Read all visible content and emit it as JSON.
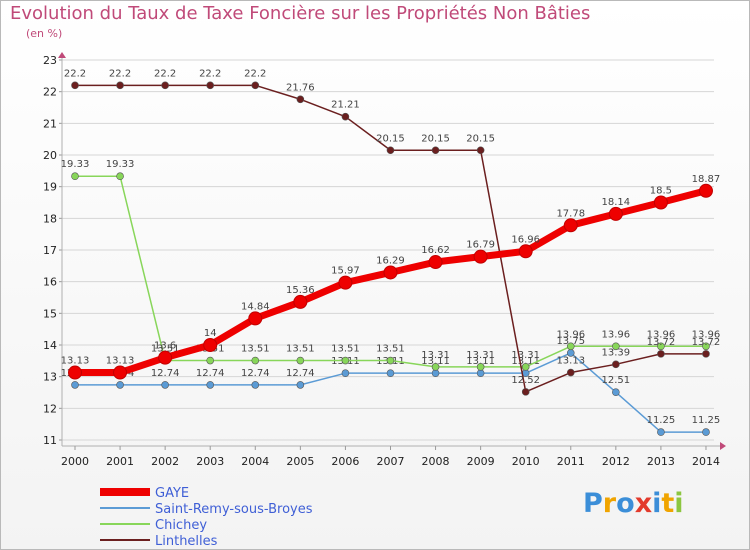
{
  "chart_data": {
    "type": "line",
    "title": "Evolution du Taux de Taxe Foncière sur les Propriétés Non Bâties",
    "ylabel": "(en %)",
    "xlabel": "",
    "x": [
      "2000",
      "2001",
      "2002",
      "2003",
      "2004",
      "2005",
      "2006",
      "2007",
      "2008",
      "2009",
      "2010",
      "2011",
      "2012",
      "2013",
      "2014"
    ],
    "ylim": [
      11,
      23
    ],
    "yticks": [
      "11",
      "12",
      "13",
      "14",
      "15",
      "16",
      "17",
      "18",
      "19",
      "20",
      "21",
      "22",
      "23"
    ],
    "series": [
      {
        "name": "GAYE",
        "color": "#ee0000",
        "values": [
          13.13,
          13.13,
          13.6,
          14,
          14.84,
          15.36,
          15.97,
          16.29,
          16.62,
          16.79,
          16.96,
          17.78,
          18.14,
          18.5,
          18.87
        ],
        "labels": [
          "13.13",
          "13.13",
          "13.6",
          "14",
          "14.84",
          "15.36",
          "15.97",
          "16.29",
          "16.62",
          "16.79",
          "16.96",
          "17.78",
          "18.14",
          "18.5",
          "18.87"
        ]
      },
      {
        "name": "Saint-Remy-sous-Broyes",
        "color": "#5b9bd5",
        "values": [
          12.74,
          12.74,
          12.74,
          12.74,
          12.74,
          12.74,
          13.11,
          13.11,
          13.11,
          13.11,
          13.11,
          13.75,
          12.51,
          11.25,
          11.25
        ],
        "labels": [
          "12.74",
          "12.74",
          "12.74",
          "12.74",
          "12.74",
          "12.74",
          "13.11",
          "13.11",
          "13.11",
          "13.11",
          "13.11",
          "13.75",
          "12.51",
          "11.25",
          "11.25"
        ]
      },
      {
        "name": "Chichey",
        "color": "#88d65a",
        "values": [
          19.33,
          19.33,
          13.51,
          13.51,
          13.51,
          13.51,
          13.51,
          13.51,
          13.31,
          13.31,
          13.31,
          13.96,
          13.96,
          13.96,
          13.96
        ],
        "labels": [
          "19.33",
          "19.33",
          "13.51",
          "13.51",
          "13.51",
          "13.51",
          "13.51",
          "13.51",
          "13.31",
          "13.31",
          "13.31",
          "13.96",
          "13.96",
          "13.96",
          "13.96"
        ]
      },
      {
        "name": "Linthelles",
        "color": "#6b1f1f",
        "values": [
          22.2,
          22.2,
          22.2,
          22.2,
          22.2,
          21.76,
          21.21,
          20.15,
          20.15,
          20.15,
          12.52,
          13.13,
          13.39,
          13.72,
          13.72
        ],
        "labels": [
          "22.2",
          "22.2",
          "22.2",
          "22.2",
          "22.2",
          "21.76",
          "21.21",
          "20.15",
          "20.15",
          "20.15",
          "12.52",
          "13.13",
          "13.39",
          "13.72",
          "13.72"
        ]
      }
    ]
  },
  "logo": {
    "letters": [
      "P",
      "r",
      "o",
      "x",
      "i",
      "t",
      "i"
    ],
    "colors": [
      "#3b8ed8",
      "#f0a400",
      "#3b8ed8",
      "#e33a2c",
      "#3b8ed8",
      "#f0a400",
      "#8cc63f"
    ]
  }
}
